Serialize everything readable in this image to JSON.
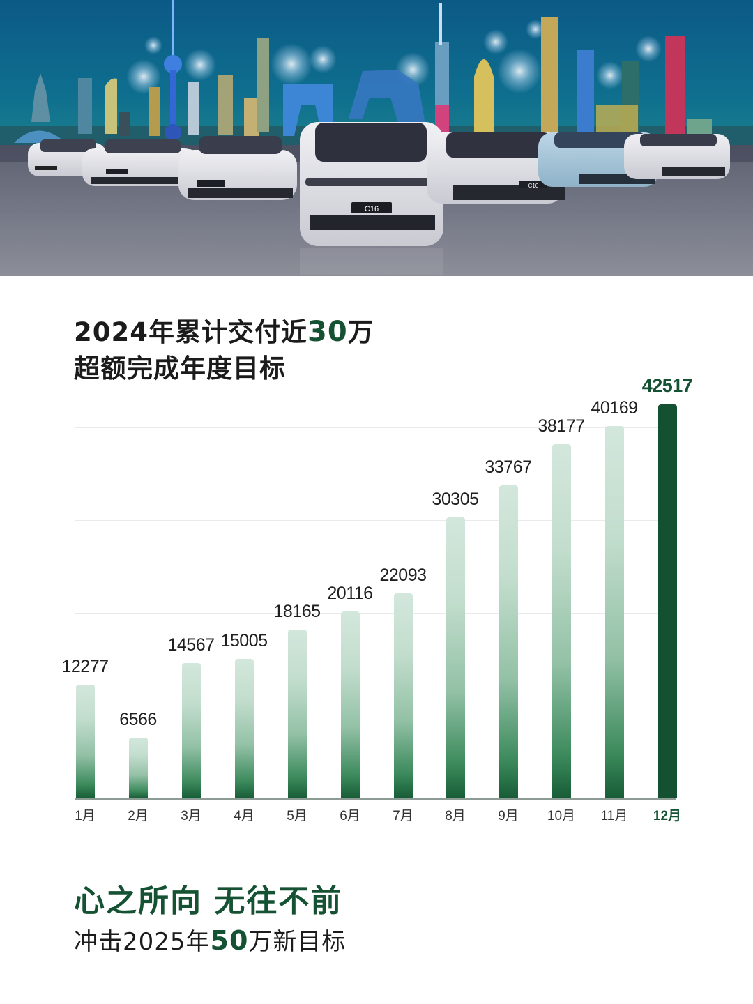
{
  "hero": {
    "alt": "Skyline at night with fireworks and a lineup of electric vehicles",
    "car_plates": [
      "C16",
      "C10"
    ],
    "colors": {
      "sky_top": "#0b5a86",
      "sky_bottom": "#2a7f86",
      "floor": "#6c6f7a"
    }
  },
  "headline": {
    "line1_prefix": "2024年累计交付近",
    "line1_number": "30",
    "line1_suffix": "万",
    "line2": "超额完成年度目标"
  },
  "chart_data": {
    "type": "bar",
    "title": "2024年累计交付近30万 超额完成年度目标",
    "xlabel": "",
    "ylabel": "",
    "categories": [
      "1月",
      "2月",
      "3月",
      "4月",
      "5月",
      "6月",
      "7月",
      "8月",
      "9月",
      "10月",
      "11月",
      "12月"
    ],
    "values": [
      12277,
      6566,
      14567,
      15005,
      18165,
      20116,
      22093,
      30305,
      33767,
      38177,
      40169,
      42517
    ],
    "value_labels": [
      "12277",
      "6566",
      "14567",
      "15005",
      "18165",
      "20116",
      "22093",
      "30305",
      "33767",
      "38177",
      "40169",
      "42517"
    ],
    "highlight_index": 11,
    "ylim": [
      0,
      42517
    ],
    "gridlines": [
      10000,
      20000,
      30000,
      40000
    ],
    "grid": true,
    "legend": null,
    "colors": {
      "bar_gradient_top": "#d3e7dc",
      "bar_gradient_bottom": "#175c36",
      "highlight": "#135132"
    }
  },
  "footer": {
    "slogan": "心之所向 无往不前",
    "target_prefix": "冲击2025年",
    "target_number": "50",
    "target_suffix": "万新目标"
  }
}
